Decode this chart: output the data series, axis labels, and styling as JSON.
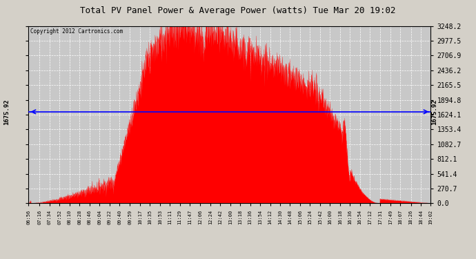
{
  "title": "Total PV Panel Power & Average Power (watts) Tue Mar 20 19:02",
  "copyright": "Copyright 2012 Cartronics.com",
  "avg_power": 1675.92,
  "y_max": 3248.2,
  "y_ticks": [
    0.0,
    270.7,
    541.4,
    812.1,
    1082.7,
    1353.4,
    1624.1,
    1894.8,
    2165.5,
    2436.2,
    2706.9,
    2977.5,
    3248.2
  ],
  "x_labels": [
    "06:56",
    "07:16",
    "07:34",
    "07:52",
    "08:10",
    "08:28",
    "08:46",
    "09:04",
    "09:22",
    "09:40",
    "09:59",
    "10:17",
    "10:35",
    "10:53",
    "11:11",
    "11:29",
    "11:47",
    "12:06",
    "12:24",
    "12:42",
    "13:00",
    "13:18",
    "13:36",
    "13:54",
    "14:12",
    "14:30",
    "14:48",
    "15:06",
    "15:24",
    "15:42",
    "16:00",
    "16:18",
    "16:36",
    "16:54",
    "17:12",
    "17:31",
    "17:49",
    "18:07",
    "18:26",
    "18:44",
    "19:02"
  ],
  "background_color": "#d4d0c8",
  "plot_bg_color": "#c8c8c8",
  "fill_color": "#ff0000",
  "grid_color": "#ffffff",
  "avg_line_color": "#0000ff",
  "border_color": "#000000",
  "title_color": "#000000"
}
